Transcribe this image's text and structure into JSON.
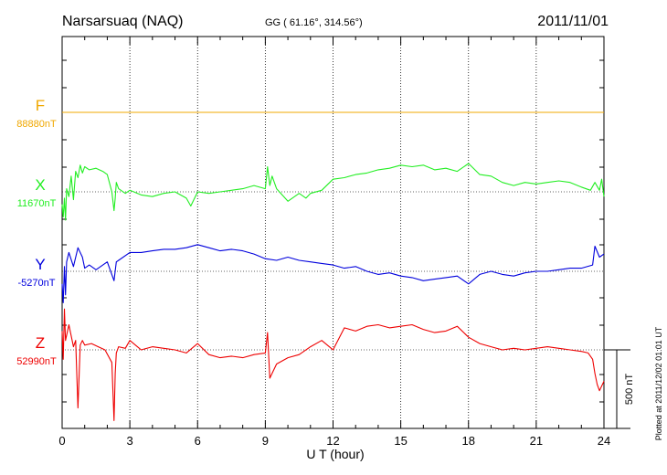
{
  "chart_data": {
    "type": "line",
    "title": "Narsarsuaq (NAQ)",
    "subtitle": "GG ( 61.16°, 314.56°)",
    "date": "2011/11/01",
    "xlabel": "U T (hour)",
    "xlim": [
      0,
      24
    ],
    "xticks": [
      "0",
      "3",
      "6",
      "9",
      "12",
      "15",
      "18",
      "21",
      "24"
    ],
    "scale_bar_label": "500 nT",
    "scale_bar_nT": 500,
    "plotted_note": "Plotted at 2011/12/02 01:01  UT",
    "series": [
      {
        "name": "F",
        "baseline_label": "88880nT",
        "baseline_nT": 88880,
        "color": "#f0a800",
        "x": [
          0,
          24
        ],
        "y": [
          0,
          0
        ]
      },
      {
        "name": "X",
        "baseline_label": "11670nT",
        "baseline_nT": 11670,
        "color": "#22ee22",
        "x": [
          0,
          0.05,
          0.1,
          0.15,
          0.2,
          0.3,
          0.4,
          0.5,
          0.6,
          0.7,
          0.8,
          0.9,
          1.0,
          1.2,
          1.5,
          1.8,
          2.0,
          2.2,
          2.3,
          2.35,
          2.4,
          2.5,
          2.8,
          3.0,
          3.5,
          4.0,
          4.5,
          5.0,
          5.5,
          5.7,
          6.0,
          6.5,
          7.0,
          7.5,
          8.0,
          8.5,
          9.0,
          9.1,
          9.2,
          9.3,
          9.5,
          10.0,
          10.5,
          10.8,
          11.0,
          11.5,
          12.0,
          12.5,
          13.0,
          13.5,
          14.0,
          14.5,
          15.0,
          15.5,
          16.0,
          16.5,
          17.0,
          17.5,
          18.0,
          18.5,
          19.0,
          19.5,
          20.0,
          20.5,
          21.0,
          21.5,
          22.0,
          22.5,
          23.0,
          23.4,
          23.6,
          23.8,
          23.9,
          24.0
        ],
        "y": [
          -80,
          -160,
          -40,
          -180,
          20,
          -30,
          100,
          -50,
          130,
          90,
          170,
          120,
          160,
          140,
          150,
          130,
          110,
          0,
          -120,
          -40,
          60,
          20,
          -10,
          10,
          -20,
          -30,
          -10,
          0,
          -40,
          -90,
          0,
          -10,
          0,
          10,
          20,
          40,
          20,
          160,
          40,
          100,
          20,
          -60,
          -10,
          -40,
          -10,
          10,
          80,
          90,
          110,
          120,
          140,
          150,
          170,
          160,
          170,
          140,
          150,
          130,
          180,
          110,
          100,
          60,
          40,
          60,
          50,
          60,
          70,
          60,
          30,
          10,
          60,
          10,
          80,
          -30
        ]
      },
      {
        "name": "Y",
        "baseline_label": "-5270nT",
        "baseline_nT": -5270,
        "color": "#0000dd",
        "x": [
          0,
          0.05,
          0.1,
          0.15,
          0.2,
          0.3,
          0.5,
          0.7,
          0.9,
          1.0,
          1.2,
          1.5,
          2.0,
          2.3,
          2.4,
          2.5,
          3.0,
          3.5,
          4.0,
          4.5,
          5.0,
          5.5,
          6.0,
          6.5,
          7.0,
          7.5,
          8.0,
          8.5,
          9.0,
          9.5,
          10.0,
          10.5,
          11.0,
          11.5,
          12.0,
          12.5,
          13.0,
          13.5,
          14.0,
          14.5,
          15.0,
          15.5,
          16.0,
          16.5,
          17.0,
          17.5,
          18.0,
          18.5,
          19.0,
          19.5,
          20.0,
          20.5,
          21.0,
          21.5,
          22.0,
          22.5,
          23.0,
          23.5,
          23.6,
          23.8,
          24.0
        ],
        "y": [
          -80,
          -200,
          30,
          -150,
          60,
          120,
          30,
          150,
          90,
          20,
          40,
          10,
          60,
          -60,
          60,
          70,
          120,
          120,
          130,
          140,
          140,
          150,
          170,
          150,
          130,
          140,
          130,
          110,
          80,
          70,
          90,
          70,
          60,
          50,
          40,
          20,
          30,
          0,
          -20,
          -10,
          -30,
          -40,
          -60,
          -50,
          -40,
          -30,
          -80,
          -20,
          0,
          -20,
          -30,
          -10,
          0,
          0,
          10,
          20,
          20,
          40,
          160,
          90,
          110
        ]
      },
      {
        "name": "Z",
        "baseline_label": "52990nT",
        "baseline_nT": 52990,
        "color": "#ee0000",
        "x": [
          0,
          0.05,
          0.1,
          0.15,
          0.3,
          0.5,
          0.6,
          0.7,
          0.8,
          0.9,
          1.0,
          1.3,
          1.6,
          1.9,
          2.2,
          2.3,
          2.35,
          2.4,
          2.5,
          2.8,
          3.0,
          3.5,
          4.0,
          4.5,
          5.0,
          5.5,
          6.0,
          6.5,
          7.0,
          7.5,
          8.0,
          8.5,
          9.0,
          9.1,
          9.2,
          9.3,
          9.5,
          10.0,
          10.5,
          11.0,
          11.5,
          12.0,
          12.5,
          13.0,
          13.5,
          14.0,
          14.5,
          15.0,
          15.5,
          16.0,
          16.5,
          17.0,
          17.5,
          18.0,
          18.5,
          19.0,
          19.5,
          20.0,
          20.5,
          21.0,
          21.5,
          22.0,
          22.5,
          23.0,
          23.3,
          23.5,
          23.6,
          23.7,
          23.8,
          24.0
        ],
        "y": [
          120,
          -60,
          260,
          60,
          160,
          20,
          60,
          -370,
          30,
          60,
          30,
          40,
          20,
          0,
          -80,
          -450,
          -150,
          -20,
          20,
          10,
          60,
          0,
          20,
          10,
          0,
          -20,
          40,
          -30,
          -50,
          -40,
          -50,
          -30,
          -20,
          110,
          -180,
          -150,
          -90,
          -50,
          -30,
          20,
          60,
          0,
          140,
          120,
          150,
          160,
          140,
          150,
          160,
          130,
          110,
          120,
          150,
          80,
          40,
          20,
          0,
          10,
          0,
          10,
          20,
          10,
          0,
          -10,
          -20,
          -60,
          -150,
          -220,
          -260,
          -200
        ]
      }
    ]
  }
}
